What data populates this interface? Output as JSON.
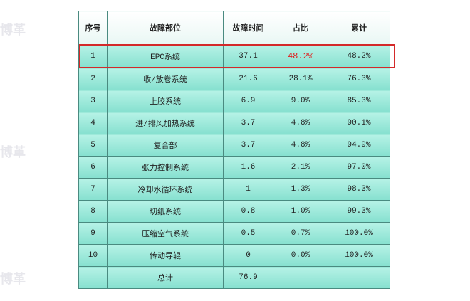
{
  "watermark": "博革",
  "table": {
    "header": [
      "序号",
      "故障部位",
      "故障时间",
      "占比",
      "累计"
    ],
    "rows": [
      [
        "1",
        "EPC系统",
        "37.1",
        "48.2%",
        "48.2%"
      ],
      [
        "2",
        "收/放卷系统",
        "21.6",
        "28.1%",
        "76.3%"
      ],
      [
        "3",
        "上胶系统",
        "6.9",
        "9.0%",
        "85.3%"
      ],
      [
        "4",
        "进/排风加热系统",
        "3.7",
        "4.8%",
        "90.1%"
      ],
      [
        "5",
        "复合部",
        "3.7",
        "4.8%",
        "94.9%"
      ],
      [
        "6",
        "张力控制系统",
        "1.6",
        "2.1%",
        "97.0%"
      ],
      [
        "7",
        "冷却水循环系统",
        "1",
        "1.3%",
        "98.3%"
      ],
      [
        "8",
        "切纸系统",
        "0.8",
        "1.0%",
        "99.3%"
      ],
      [
        "9",
        "压缩空气系统",
        "0.5",
        "0.7%",
        "100.0%"
      ],
      [
        "10",
        "传动导辊",
        "0",
        "0.0%",
        "100.0%"
      ]
    ],
    "total": {
      "label": "总计",
      "time": "76.9"
    }
  }
}
